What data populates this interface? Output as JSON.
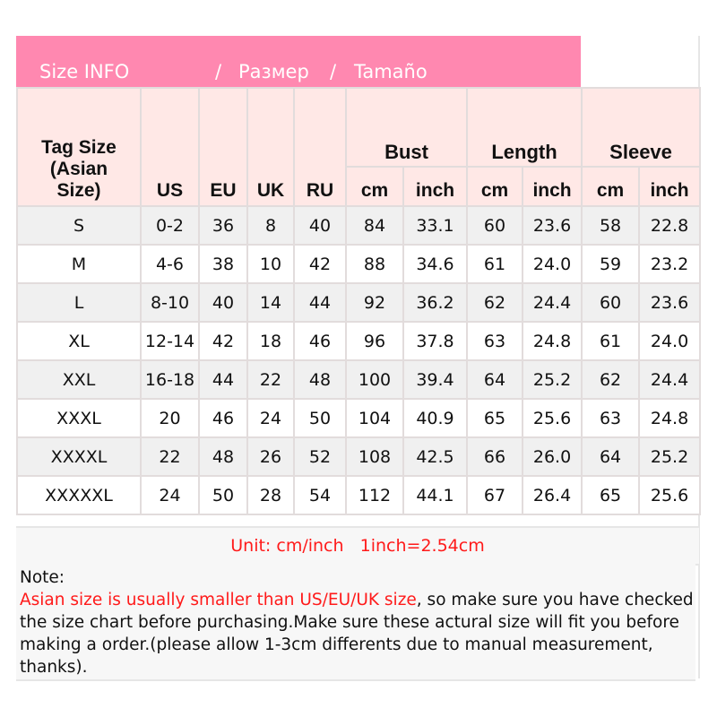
{
  "title": {
    "en": "Size INFO",
    "sep1": "/",
    "ru": "Размер",
    "sep2": "/",
    "es": "Tamaño"
  },
  "colors": {
    "title_bar": "#ff88b0",
    "header_bg": "#ffe8e6",
    "row_alt": "#f0f0f0",
    "warning_text": "#ff1a1a"
  },
  "headers": {
    "tag_size": "Tag Size (Asian Size)",
    "us": "US",
    "eu": "EU",
    "uk": "UK",
    "ru": "RU",
    "bust": "Bust",
    "length": "Length",
    "sleeve": "Sleeve",
    "cm": "cm",
    "inch": "inch"
  },
  "rows": [
    [
      "S",
      "0-2",
      "36",
      "8",
      "40",
      "84",
      "33.1",
      "60",
      "23.6",
      "58",
      "22.8"
    ],
    [
      "M",
      "4-6",
      "38",
      "10",
      "42",
      "88",
      "34.6",
      "61",
      "24.0",
      "59",
      "23.2"
    ],
    [
      "L",
      "8-10",
      "40",
      "14",
      "44",
      "92",
      "36.2",
      "62",
      "24.4",
      "60",
      "23.6"
    ],
    [
      "XL",
      "12-14",
      "42",
      "18",
      "46",
      "96",
      "37.8",
      "63",
      "24.8",
      "61",
      "24.0"
    ],
    [
      "XXL",
      "16-18",
      "44",
      "22",
      "48",
      "100",
      "39.4",
      "64",
      "25.2",
      "62",
      "24.4"
    ],
    [
      "XXXL",
      "20",
      "46",
      "24",
      "50",
      "104",
      "40.9",
      "65",
      "25.6",
      "63",
      "24.8"
    ],
    [
      "XXXXL",
      "22",
      "48",
      "26",
      "52",
      "108",
      "42.5",
      "66",
      "26.0",
      "64",
      "25.2"
    ],
    [
      "XXXXXL",
      "24",
      "50",
      "28",
      "54",
      "112",
      "44.1",
      "67",
      "26.4",
      "65",
      "25.6"
    ]
  ],
  "unit_line": "Unit: cm/inch   1inch=2.54cm",
  "note": {
    "label": "Note:",
    "warning": "Asian size is usually smaller than US/EU/UK size",
    "body": ", so make sure you have checked the size chart before purchasing.Make sure these actural size will fit you before making a order.(please allow 1-3cm differents due to manual measurement, thanks)."
  }
}
